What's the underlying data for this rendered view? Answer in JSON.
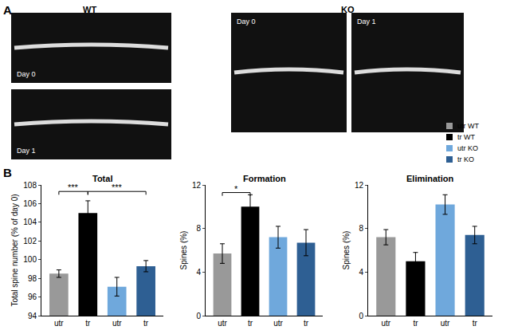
{
  "panel_a": {
    "label": "A",
    "groups": [
      {
        "title": "WT",
        "images": [
          "Day 0",
          "Day 1"
        ]
      },
      {
        "title": "KO",
        "images": [
          "Day 0",
          "Day 1"
        ]
      }
    ]
  },
  "panel_b_label": "B",
  "legend_entries": [
    {
      "name": "utr WT",
      "color": "#999999"
    },
    {
      "name": "tr WT",
      "color": "#000000"
    },
    {
      "name": "utr KO",
      "color": "#6fa8dc"
    },
    {
      "name": "tr KO",
      "color": "#2e5f93"
    }
  ],
  "chart_data": [
    {
      "type": "bar",
      "title": "Total",
      "y_label": "Total spine number (% of day 0)",
      "categories": [
        "utr",
        "tr",
        "utr",
        "tr"
      ],
      "values": [
        98.5,
        105.0,
        97.1,
        99.3
      ],
      "errors": [
        0.4,
        1.3,
        1.0,
        0.6
      ],
      "colors": [
        "#999999",
        "#000000",
        "#6fa8dc",
        "#2e5f93"
      ],
      "ylim": [
        94,
        108
      ],
      "yticks": [
        94,
        96,
        98,
        100,
        102,
        104,
        106,
        108
      ],
      "grid": false,
      "annotations": [
        {
          "text": "***",
          "from": 0,
          "to": 1,
          "y": 107.3
        },
        {
          "text": "***",
          "from": 1,
          "to": 3,
          "y": 107.3
        }
      ]
    },
    {
      "type": "bar",
      "title": "Formation",
      "y_label": "Spines (%)",
      "categories": [
        "utr",
        "tr",
        "utr",
        "tr"
      ],
      "values": [
        5.7,
        10.0,
        7.2,
        6.7
      ],
      "errors": [
        0.9,
        1.1,
        1.0,
        1.2
      ],
      "colors": [
        "#999999",
        "#000000",
        "#6fa8dc",
        "#2e5f93"
      ],
      "ylim": [
        0,
        12
      ],
      "yticks": [
        0,
        4,
        8,
        12
      ],
      "grid": false,
      "annotations": [
        {
          "text": "*",
          "from": 0,
          "to": 1,
          "y": 11.3
        }
      ]
    },
    {
      "type": "bar",
      "title": "Elimination",
      "y_label": "Spines (%)",
      "categories": [
        "utr",
        "tr",
        "utr",
        "tr"
      ],
      "values": [
        7.2,
        5.0,
        10.2,
        7.4
      ],
      "errors": [
        0.7,
        0.8,
        0.9,
        0.8
      ],
      "colors": [
        "#999999",
        "#000000",
        "#6fa8dc",
        "#2e5f93"
      ],
      "ylim": [
        0,
        12
      ],
      "yticks": [
        0,
        4,
        8,
        12
      ],
      "grid": false,
      "annotations": []
    }
  ]
}
